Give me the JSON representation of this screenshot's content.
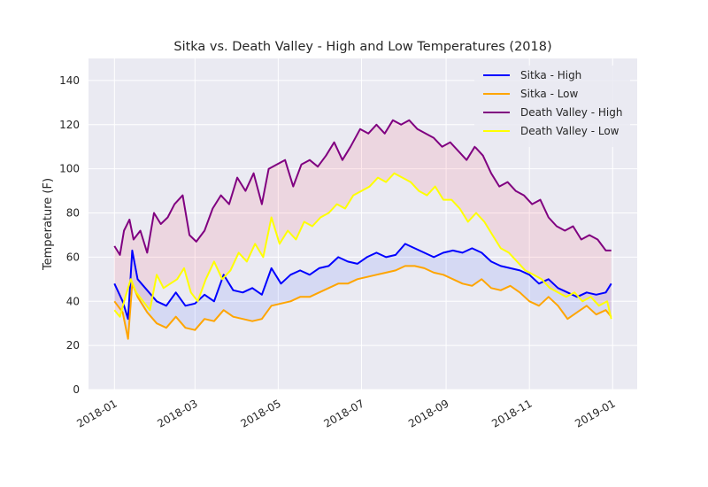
{
  "chart_data": {
    "type": "line",
    "title": "Sitka vs. Death Valley - High and Low Temperatures (2018)",
    "xlabel": "",
    "ylabel": "Temperature (F)",
    "xlim": [
      "2017-12-13",
      "2019-01-19"
    ],
    "ylim": [
      0,
      150
    ],
    "x_ticks": [
      "2018-01",
      "2018-03",
      "2018-05",
      "2018-07",
      "2018-09",
      "2018-11",
      "2019-01"
    ],
    "y_ticks": [
      0,
      20,
      40,
      60,
      80,
      100,
      120,
      140
    ],
    "grid": true,
    "legend_position": "upper-right",
    "fills": [
      {
        "between": [
          "Sitka - High",
          "Sitka - Low"
        ],
        "color": "#4f6cff",
        "opacity": 0.13
      },
      {
        "between": [
          "Death Valley - High",
          "Death Valley - Low"
        ],
        "color": "#ff3b55",
        "opacity": 0.11
      }
    ],
    "series": [
      {
        "name": "Sitka - High",
        "color": "#0000ff",
        "points": [
          [
            "2018-01-01",
            48
          ],
          [
            "2018-01-07",
            40
          ],
          [
            "2018-01-11",
            32
          ],
          [
            "2018-01-14",
            63
          ],
          [
            "2018-01-18",
            50
          ],
          [
            "2018-01-25",
            45
          ],
          [
            "2018-02-01",
            40
          ],
          [
            "2018-02-08",
            38
          ],
          [
            "2018-02-15",
            44
          ],
          [
            "2018-02-22",
            38
          ],
          [
            "2018-03-01",
            39
          ],
          [
            "2018-03-08",
            43
          ],
          [
            "2018-03-15",
            40
          ],
          [
            "2018-03-22",
            52
          ],
          [
            "2018-03-29",
            45
          ],
          [
            "2018-04-05",
            44
          ],
          [
            "2018-04-12",
            46
          ],
          [
            "2018-04-19",
            43
          ],
          [
            "2018-04-26",
            55
          ],
          [
            "2018-05-03",
            48
          ],
          [
            "2018-05-10",
            52
          ],
          [
            "2018-05-17",
            54
          ],
          [
            "2018-05-24",
            52
          ],
          [
            "2018-05-31",
            55
          ],
          [
            "2018-06-07",
            56
          ],
          [
            "2018-06-14",
            60
          ],
          [
            "2018-06-21",
            58
          ],
          [
            "2018-06-28",
            57
          ],
          [
            "2018-07-05",
            60
          ],
          [
            "2018-07-12",
            62
          ],
          [
            "2018-07-19",
            60
          ],
          [
            "2018-07-26",
            61
          ],
          [
            "2018-08-02",
            66
          ],
          [
            "2018-08-09",
            64
          ],
          [
            "2018-08-16",
            62
          ],
          [
            "2018-08-23",
            60
          ],
          [
            "2018-08-30",
            62
          ],
          [
            "2018-09-06",
            63
          ],
          [
            "2018-09-13",
            62
          ],
          [
            "2018-09-20",
            64
          ],
          [
            "2018-09-27",
            62
          ],
          [
            "2018-10-04",
            58
          ],
          [
            "2018-10-11",
            56
          ],
          [
            "2018-10-18",
            55
          ],
          [
            "2018-10-25",
            54
          ],
          [
            "2018-11-01",
            52
          ],
          [
            "2018-11-08",
            48
          ],
          [
            "2018-11-15",
            50
          ],
          [
            "2018-11-22",
            46
          ],
          [
            "2018-11-29",
            44
          ],
          [
            "2018-12-06",
            42
          ],
          [
            "2018-12-13",
            44
          ],
          [
            "2018-12-20",
            43
          ],
          [
            "2018-12-27",
            44
          ],
          [
            "2018-12-31",
            48
          ]
        ]
      },
      {
        "name": "Sitka - Low",
        "color": "#ffa500",
        "points": [
          [
            "2018-01-01",
            40
          ],
          [
            "2018-01-07",
            35
          ],
          [
            "2018-01-11",
            23
          ],
          [
            "2018-01-14",
            48
          ],
          [
            "2018-01-18",
            42
          ],
          [
            "2018-01-25",
            35
          ],
          [
            "2018-02-01",
            30
          ],
          [
            "2018-02-08",
            28
          ],
          [
            "2018-02-15",
            33
          ],
          [
            "2018-02-22",
            28
          ],
          [
            "2018-03-01",
            27
          ],
          [
            "2018-03-08",
            32
          ],
          [
            "2018-03-15",
            31
          ],
          [
            "2018-03-22",
            36
          ],
          [
            "2018-03-29",
            33
          ],
          [
            "2018-04-05",
            32
          ],
          [
            "2018-04-12",
            31
          ],
          [
            "2018-04-19",
            32
          ],
          [
            "2018-04-26",
            38
          ],
          [
            "2018-05-03",
            39
          ],
          [
            "2018-05-10",
            40
          ],
          [
            "2018-05-17",
            42
          ],
          [
            "2018-05-24",
            42
          ],
          [
            "2018-05-31",
            44
          ],
          [
            "2018-06-07",
            46
          ],
          [
            "2018-06-14",
            48
          ],
          [
            "2018-06-21",
            48
          ],
          [
            "2018-06-28",
            50
          ],
          [
            "2018-07-05",
            51
          ],
          [
            "2018-07-12",
            52
          ],
          [
            "2018-07-19",
            53
          ],
          [
            "2018-07-26",
            54
          ],
          [
            "2018-08-02",
            56
          ],
          [
            "2018-08-09",
            56
          ],
          [
            "2018-08-16",
            55
          ],
          [
            "2018-08-23",
            53
          ],
          [
            "2018-08-30",
            52
          ],
          [
            "2018-09-06",
            50
          ],
          [
            "2018-09-13",
            48
          ],
          [
            "2018-09-20",
            47
          ],
          [
            "2018-09-27",
            50
          ],
          [
            "2018-10-04",
            46
          ],
          [
            "2018-10-11",
            45
          ],
          [
            "2018-10-18",
            47
          ],
          [
            "2018-10-25",
            44
          ],
          [
            "2018-11-01",
            40
          ],
          [
            "2018-11-08",
            38
          ],
          [
            "2018-11-15",
            42
          ],
          [
            "2018-11-22",
            38
          ],
          [
            "2018-11-29",
            32
          ],
          [
            "2018-12-06",
            35
          ],
          [
            "2018-12-13",
            38
          ],
          [
            "2018-12-20",
            34
          ],
          [
            "2018-12-27",
            36
          ],
          [
            "2018-12-31",
            33
          ]
        ]
      },
      {
        "name": "Death Valley - High",
        "color": "#800080",
        "points": [
          [
            "2018-01-01",
            65
          ],
          [
            "2018-01-05",
            61
          ],
          [
            "2018-01-08",
            72
          ],
          [
            "2018-01-12",
            77
          ],
          [
            "2018-01-15",
            68
          ],
          [
            "2018-01-20",
            72
          ],
          [
            "2018-01-25",
            62
          ],
          [
            "2018-01-30",
            80
          ],
          [
            "2018-02-04",
            75
          ],
          [
            "2018-02-09",
            78
          ],
          [
            "2018-02-14",
            84
          ],
          [
            "2018-02-20",
            88
          ],
          [
            "2018-02-25",
            70
          ],
          [
            "2018-03-02",
            67
          ],
          [
            "2018-03-08",
            72
          ],
          [
            "2018-03-14",
            82
          ],
          [
            "2018-03-20",
            88
          ],
          [
            "2018-03-26",
            84
          ],
          [
            "2018-04-01",
            96
          ],
          [
            "2018-04-07",
            90
          ],
          [
            "2018-04-13",
            98
          ],
          [
            "2018-04-19",
            84
          ],
          [
            "2018-04-24",
            100
          ],
          [
            "2018-04-30",
            102
          ],
          [
            "2018-05-06",
            104
          ],
          [
            "2018-05-12",
            92
          ],
          [
            "2018-05-18",
            102
          ],
          [
            "2018-05-24",
            104
          ],
          [
            "2018-05-30",
            101
          ],
          [
            "2018-06-05",
            106
          ],
          [
            "2018-06-11",
            112
          ],
          [
            "2018-06-17",
            104
          ],
          [
            "2018-06-23",
            110
          ],
          [
            "2018-06-30",
            118
          ],
          [
            "2018-07-06",
            116
          ],
          [
            "2018-07-12",
            120
          ],
          [
            "2018-07-18",
            116
          ],
          [
            "2018-07-24",
            122
          ],
          [
            "2018-07-30",
            120
          ],
          [
            "2018-08-05",
            122
          ],
          [
            "2018-08-11",
            118
          ],
          [
            "2018-08-17",
            116
          ],
          [
            "2018-08-23",
            114
          ],
          [
            "2018-08-29",
            110
          ],
          [
            "2018-09-04",
            112
          ],
          [
            "2018-09-10",
            108
          ],
          [
            "2018-09-16",
            104
          ],
          [
            "2018-09-22",
            110
          ],
          [
            "2018-09-28",
            106
          ],
          [
            "2018-10-04",
            98
          ],
          [
            "2018-10-10",
            92
          ],
          [
            "2018-10-16",
            94
          ],
          [
            "2018-10-22",
            90
          ],
          [
            "2018-10-28",
            88
          ],
          [
            "2018-11-03",
            84
          ],
          [
            "2018-11-09",
            86
          ],
          [
            "2018-11-15",
            78
          ],
          [
            "2018-11-21",
            74
          ],
          [
            "2018-11-27",
            72
          ],
          [
            "2018-12-03",
            74
          ],
          [
            "2018-12-09",
            68
          ],
          [
            "2018-12-15",
            70
          ],
          [
            "2018-12-21",
            68
          ],
          [
            "2018-12-27",
            63
          ],
          [
            "2018-12-31",
            63
          ]
        ]
      },
      {
        "name": "Death Valley - Low",
        "color": "#ffff00",
        "points": [
          [
            "2018-01-01",
            36
          ],
          [
            "2018-01-05",
            33
          ],
          [
            "2018-01-09",
            42
          ],
          [
            "2018-01-13",
            50
          ],
          [
            "2018-01-17",
            44
          ],
          [
            "2018-01-22",
            40
          ],
          [
            "2018-01-27",
            36
          ],
          [
            "2018-02-01",
            52
          ],
          [
            "2018-02-06",
            46
          ],
          [
            "2018-02-11",
            48
          ],
          [
            "2018-02-16",
            50
          ],
          [
            "2018-02-21",
            55
          ],
          [
            "2018-02-26",
            44
          ],
          [
            "2018-03-03",
            40
          ],
          [
            "2018-03-09",
            50
          ],
          [
            "2018-03-15",
            58
          ],
          [
            "2018-03-21",
            50
          ],
          [
            "2018-03-27",
            54
          ],
          [
            "2018-04-02",
            62
          ],
          [
            "2018-04-08",
            58
          ],
          [
            "2018-04-14",
            66
          ],
          [
            "2018-04-20",
            60
          ],
          [
            "2018-04-26",
            78
          ],
          [
            "2018-05-02",
            66
          ],
          [
            "2018-05-08",
            72
          ],
          [
            "2018-05-14",
            68
          ],
          [
            "2018-05-20",
            76
          ],
          [
            "2018-05-26",
            74
          ],
          [
            "2018-06-01",
            78
          ],
          [
            "2018-06-07",
            80
          ],
          [
            "2018-06-13",
            84
          ],
          [
            "2018-06-19",
            82
          ],
          [
            "2018-06-25",
            88
          ],
          [
            "2018-07-01",
            90
          ],
          [
            "2018-07-07",
            92
          ],
          [
            "2018-07-13",
            96
          ],
          [
            "2018-07-19",
            94
          ],
          [
            "2018-07-25",
            98
          ],
          [
            "2018-07-31",
            96
          ],
          [
            "2018-08-06",
            94
          ],
          [
            "2018-08-12",
            90
          ],
          [
            "2018-08-18",
            88
          ],
          [
            "2018-08-24",
            92
          ],
          [
            "2018-08-30",
            86
          ],
          [
            "2018-09-05",
            86
          ],
          [
            "2018-09-11",
            82
          ],
          [
            "2018-09-17",
            76
          ],
          [
            "2018-09-23",
            80
          ],
          [
            "2018-09-29",
            76
          ],
          [
            "2018-10-05",
            70
          ],
          [
            "2018-10-11",
            64
          ],
          [
            "2018-10-17",
            62
          ],
          [
            "2018-10-23",
            58
          ],
          [
            "2018-10-29",
            54
          ],
          [
            "2018-11-04",
            52
          ],
          [
            "2018-11-10",
            50
          ],
          [
            "2018-11-16",
            46
          ],
          [
            "2018-11-22",
            44
          ],
          [
            "2018-11-28",
            42
          ],
          [
            "2018-12-04",
            44
          ],
          [
            "2018-12-10",
            40
          ],
          [
            "2018-12-16",
            42
          ],
          [
            "2018-12-22",
            38
          ],
          [
            "2018-12-28",
            40
          ],
          [
            "2018-12-31",
            32
          ]
        ]
      }
    ]
  }
}
